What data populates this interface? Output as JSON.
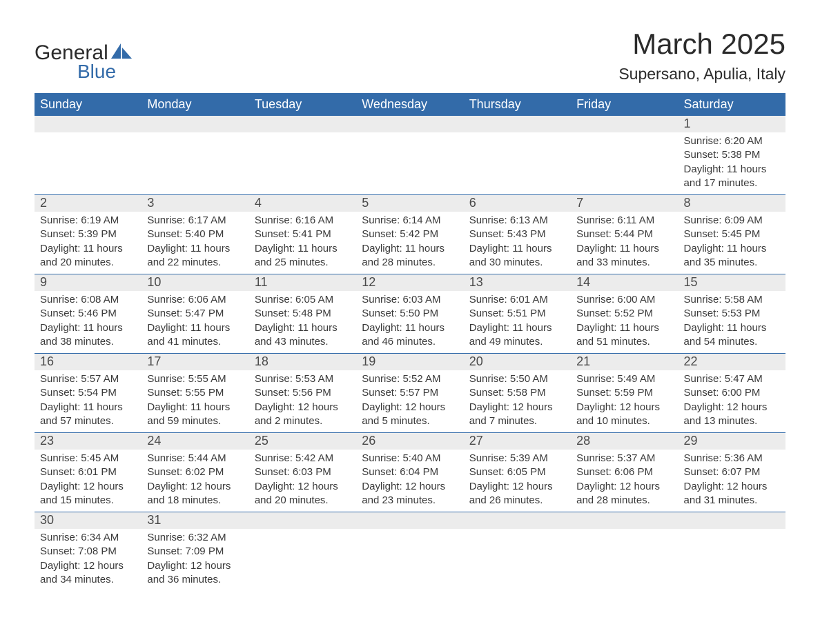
{
  "logo": {
    "general": "General",
    "blue": "Blue",
    "shape_color": "#336ba9"
  },
  "title": {
    "month": "March 2025",
    "location": "Supersano, Apulia, Italy"
  },
  "colors": {
    "header_bg": "#336ba9",
    "header_text": "#ffffff",
    "row_divider": "#336ba9",
    "daynum_bg": "#ececec",
    "body_text": "#3a3a3a"
  },
  "weekdays": [
    "Sunday",
    "Monday",
    "Tuesday",
    "Wednesday",
    "Thursday",
    "Friday",
    "Saturday"
  ],
  "weeks": [
    [
      {
        "num": "",
        "sunrise": "",
        "sunset": "",
        "daylight1": "",
        "daylight2": ""
      },
      {
        "num": "",
        "sunrise": "",
        "sunset": "",
        "daylight1": "",
        "daylight2": ""
      },
      {
        "num": "",
        "sunrise": "",
        "sunset": "",
        "daylight1": "",
        "daylight2": ""
      },
      {
        "num": "",
        "sunrise": "",
        "sunset": "",
        "daylight1": "",
        "daylight2": ""
      },
      {
        "num": "",
        "sunrise": "",
        "sunset": "",
        "daylight1": "",
        "daylight2": ""
      },
      {
        "num": "",
        "sunrise": "",
        "sunset": "",
        "daylight1": "",
        "daylight2": ""
      },
      {
        "num": "1",
        "sunrise": "Sunrise: 6:20 AM",
        "sunset": "Sunset: 5:38 PM",
        "daylight1": "Daylight: 11 hours",
        "daylight2": "and 17 minutes."
      }
    ],
    [
      {
        "num": "2",
        "sunrise": "Sunrise: 6:19 AM",
        "sunset": "Sunset: 5:39 PM",
        "daylight1": "Daylight: 11 hours",
        "daylight2": "and 20 minutes."
      },
      {
        "num": "3",
        "sunrise": "Sunrise: 6:17 AM",
        "sunset": "Sunset: 5:40 PM",
        "daylight1": "Daylight: 11 hours",
        "daylight2": "and 22 minutes."
      },
      {
        "num": "4",
        "sunrise": "Sunrise: 6:16 AM",
        "sunset": "Sunset: 5:41 PM",
        "daylight1": "Daylight: 11 hours",
        "daylight2": "and 25 minutes."
      },
      {
        "num": "5",
        "sunrise": "Sunrise: 6:14 AM",
        "sunset": "Sunset: 5:42 PM",
        "daylight1": "Daylight: 11 hours",
        "daylight2": "and 28 minutes."
      },
      {
        "num": "6",
        "sunrise": "Sunrise: 6:13 AM",
        "sunset": "Sunset: 5:43 PM",
        "daylight1": "Daylight: 11 hours",
        "daylight2": "and 30 minutes."
      },
      {
        "num": "7",
        "sunrise": "Sunrise: 6:11 AM",
        "sunset": "Sunset: 5:44 PM",
        "daylight1": "Daylight: 11 hours",
        "daylight2": "and 33 minutes."
      },
      {
        "num": "8",
        "sunrise": "Sunrise: 6:09 AM",
        "sunset": "Sunset: 5:45 PM",
        "daylight1": "Daylight: 11 hours",
        "daylight2": "and 35 minutes."
      }
    ],
    [
      {
        "num": "9",
        "sunrise": "Sunrise: 6:08 AM",
        "sunset": "Sunset: 5:46 PM",
        "daylight1": "Daylight: 11 hours",
        "daylight2": "and 38 minutes."
      },
      {
        "num": "10",
        "sunrise": "Sunrise: 6:06 AM",
        "sunset": "Sunset: 5:47 PM",
        "daylight1": "Daylight: 11 hours",
        "daylight2": "and 41 minutes."
      },
      {
        "num": "11",
        "sunrise": "Sunrise: 6:05 AM",
        "sunset": "Sunset: 5:48 PM",
        "daylight1": "Daylight: 11 hours",
        "daylight2": "and 43 minutes."
      },
      {
        "num": "12",
        "sunrise": "Sunrise: 6:03 AM",
        "sunset": "Sunset: 5:50 PM",
        "daylight1": "Daylight: 11 hours",
        "daylight2": "and 46 minutes."
      },
      {
        "num": "13",
        "sunrise": "Sunrise: 6:01 AM",
        "sunset": "Sunset: 5:51 PM",
        "daylight1": "Daylight: 11 hours",
        "daylight2": "and 49 minutes."
      },
      {
        "num": "14",
        "sunrise": "Sunrise: 6:00 AM",
        "sunset": "Sunset: 5:52 PM",
        "daylight1": "Daylight: 11 hours",
        "daylight2": "and 51 minutes."
      },
      {
        "num": "15",
        "sunrise": "Sunrise: 5:58 AM",
        "sunset": "Sunset: 5:53 PM",
        "daylight1": "Daylight: 11 hours",
        "daylight2": "and 54 minutes."
      }
    ],
    [
      {
        "num": "16",
        "sunrise": "Sunrise: 5:57 AM",
        "sunset": "Sunset: 5:54 PM",
        "daylight1": "Daylight: 11 hours",
        "daylight2": "and 57 minutes."
      },
      {
        "num": "17",
        "sunrise": "Sunrise: 5:55 AM",
        "sunset": "Sunset: 5:55 PM",
        "daylight1": "Daylight: 11 hours",
        "daylight2": "and 59 minutes."
      },
      {
        "num": "18",
        "sunrise": "Sunrise: 5:53 AM",
        "sunset": "Sunset: 5:56 PM",
        "daylight1": "Daylight: 12 hours",
        "daylight2": "and 2 minutes."
      },
      {
        "num": "19",
        "sunrise": "Sunrise: 5:52 AM",
        "sunset": "Sunset: 5:57 PM",
        "daylight1": "Daylight: 12 hours",
        "daylight2": "and 5 minutes."
      },
      {
        "num": "20",
        "sunrise": "Sunrise: 5:50 AM",
        "sunset": "Sunset: 5:58 PM",
        "daylight1": "Daylight: 12 hours",
        "daylight2": "and 7 minutes."
      },
      {
        "num": "21",
        "sunrise": "Sunrise: 5:49 AM",
        "sunset": "Sunset: 5:59 PM",
        "daylight1": "Daylight: 12 hours",
        "daylight2": "and 10 minutes."
      },
      {
        "num": "22",
        "sunrise": "Sunrise: 5:47 AM",
        "sunset": "Sunset: 6:00 PM",
        "daylight1": "Daylight: 12 hours",
        "daylight2": "and 13 minutes."
      }
    ],
    [
      {
        "num": "23",
        "sunrise": "Sunrise: 5:45 AM",
        "sunset": "Sunset: 6:01 PM",
        "daylight1": "Daylight: 12 hours",
        "daylight2": "and 15 minutes."
      },
      {
        "num": "24",
        "sunrise": "Sunrise: 5:44 AM",
        "sunset": "Sunset: 6:02 PM",
        "daylight1": "Daylight: 12 hours",
        "daylight2": "and 18 minutes."
      },
      {
        "num": "25",
        "sunrise": "Sunrise: 5:42 AM",
        "sunset": "Sunset: 6:03 PM",
        "daylight1": "Daylight: 12 hours",
        "daylight2": "and 20 minutes."
      },
      {
        "num": "26",
        "sunrise": "Sunrise: 5:40 AM",
        "sunset": "Sunset: 6:04 PM",
        "daylight1": "Daylight: 12 hours",
        "daylight2": "and 23 minutes."
      },
      {
        "num": "27",
        "sunrise": "Sunrise: 5:39 AM",
        "sunset": "Sunset: 6:05 PM",
        "daylight1": "Daylight: 12 hours",
        "daylight2": "and 26 minutes."
      },
      {
        "num": "28",
        "sunrise": "Sunrise: 5:37 AM",
        "sunset": "Sunset: 6:06 PM",
        "daylight1": "Daylight: 12 hours",
        "daylight2": "and 28 minutes."
      },
      {
        "num": "29",
        "sunrise": "Sunrise: 5:36 AM",
        "sunset": "Sunset: 6:07 PM",
        "daylight1": "Daylight: 12 hours",
        "daylight2": "and 31 minutes."
      }
    ],
    [
      {
        "num": "30",
        "sunrise": "Sunrise: 6:34 AM",
        "sunset": "Sunset: 7:08 PM",
        "daylight1": "Daylight: 12 hours",
        "daylight2": "and 34 minutes."
      },
      {
        "num": "31",
        "sunrise": "Sunrise: 6:32 AM",
        "sunset": "Sunset: 7:09 PM",
        "daylight1": "Daylight: 12 hours",
        "daylight2": "and 36 minutes."
      },
      {
        "num": "",
        "sunrise": "",
        "sunset": "",
        "daylight1": "",
        "daylight2": ""
      },
      {
        "num": "",
        "sunrise": "",
        "sunset": "",
        "daylight1": "",
        "daylight2": ""
      },
      {
        "num": "",
        "sunrise": "",
        "sunset": "",
        "daylight1": "",
        "daylight2": ""
      },
      {
        "num": "",
        "sunrise": "",
        "sunset": "",
        "daylight1": "",
        "daylight2": ""
      },
      {
        "num": "",
        "sunrise": "",
        "sunset": "",
        "daylight1": "",
        "daylight2": ""
      }
    ]
  ]
}
